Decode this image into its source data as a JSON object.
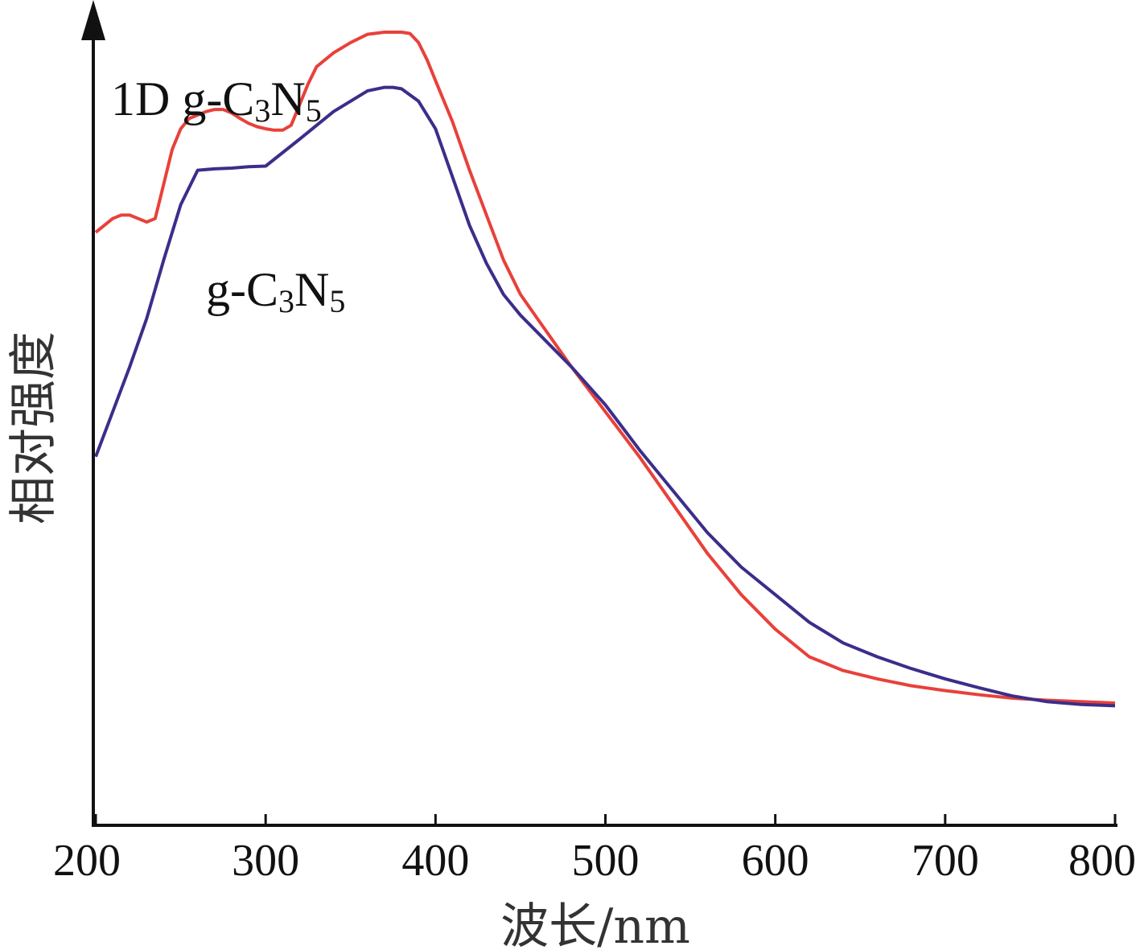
{
  "chart_data": {
    "type": "line",
    "xlabel": "波长/nm",
    "ylabel": "相对强度",
    "xlim": [
      200,
      800
    ],
    "ylim": [
      0,
      100
    ],
    "x_ticks": [
      200,
      300,
      400,
      500,
      600,
      700,
      800
    ],
    "x_tick_labels": [
      "200",
      "300",
      "400",
      "500",
      "600",
      "700",
      "800"
    ],
    "y_ticks_shown": false,
    "grid": false,
    "legend": "none (series labelled inline)",
    "series": [
      {
        "name": "1D g-C3N5",
        "label_parts": [
          "1D g-C",
          "3",
          "N",
          "5"
        ],
        "color": "#e8413a",
        "x": [
          200,
          205,
          210,
          215,
          220,
          225,
          230,
          235,
          240,
          245,
          250,
          255,
          260,
          265,
          270,
          275,
          280,
          285,
          290,
          295,
          300,
          305,
          310,
          315,
          320,
          325,
          330,
          340,
          350,
          360,
          370,
          380,
          385,
          390,
          395,
          400,
          410,
          420,
          430,
          440,
          450,
          460,
          480,
          500,
          520,
          540,
          560,
          580,
          600,
          620,
          640,
          660,
          680,
          700,
          720,
          740,
          760,
          780,
          800
        ],
        "y": [
          71,
          72,
          73,
          73.5,
          73.5,
          73,
          72.5,
          73,
          78,
          83,
          86,
          87.5,
          88,
          88.5,
          88.8,
          88.8,
          88.3,
          87.5,
          86.8,
          86.3,
          86,
          85.8,
          85.8,
          86.5,
          89.5,
          92.5,
          95,
          97,
          98.5,
          99.7,
          100,
          100,
          99.8,
          98.5,
          96,
          93,
          87,
          80,
          73.5,
          67,
          62,
          58.5,
          51.5,
          45,
          38.5,
          31.5,
          24.5,
          18.5,
          13.5,
          9.5,
          7.5,
          6.3,
          5.3,
          4.6,
          4.0,
          3.5,
          3.2,
          3.0,
          2.8
        ]
      },
      {
        "name": "g-C3N5",
        "label_parts": [
          "g-C",
          "3",
          "N",
          "5"
        ],
        "color": "#3b2e8a",
        "x": [
          200,
          210,
          220,
          230,
          240,
          250,
          260,
          270,
          280,
          290,
          300,
          320,
          340,
          360,
          370,
          375,
          380,
          390,
          400,
          410,
          420,
          430,
          440,
          450,
          460,
          480,
          500,
          520,
          540,
          560,
          580,
          600,
          620,
          640,
          660,
          680,
          700,
          720,
          740,
          760,
          780,
          800
        ],
        "y": [
          38.5,
          45,
          51.5,
          58.5,
          67,
          75,
          80,
          80.2,
          80.3,
          80.5,
          80.6,
          84.5,
          88.5,
          91.5,
          92,
          92,
          91.8,
          90,
          86,
          79,
          72,
          66.5,
          62,
          59,
          56.5,
          51.5,
          46,
          39.5,
          33.5,
          27.5,
          22.5,
          18.5,
          14.5,
          11.5,
          9.5,
          7.8,
          6.3,
          5.0,
          3.8,
          3.0,
          2.6,
          2.4
        ]
      }
    ]
  }
}
